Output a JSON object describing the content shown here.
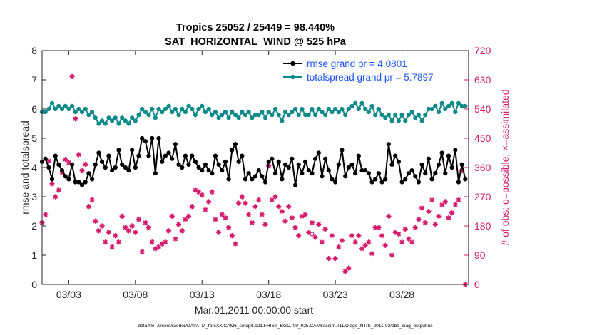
{
  "chart_data": {
    "type": "line",
    "title_line1": "Tropics 25052 / 25449 = 98.440%",
    "title_line2": "SAT_HORIZONTAL_WIND @ 525 hPa",
    "xlabel": "Mar.01,2011 00:00:00 start",
    "ylabel_left": "rmse and totalspread",
    "ylabel_right": "# of obs: o=possible; ×=assimilated",
    "footer": "data file: /Users/raeder/DAI/ATM_forcXX/CAM6_setup/f.e21.FHIST_BGC.f09_025.CAM6assim.011/Diags_NTrS_2011-03/obs_diag_output.nc",
    "xlim": [
      1,
      33
    ],
    "ylim_left": [
      0,
      8
    ],
    "ylim_right": [
      0,
      720
    ],
    "x_ticks": [
      3,
      8,
      13,
      18,
      23,
      28
    ],
    "x_tick_labels": [
      "03/03",
      "03/08",
      "03/13",
      "03/18",
      "03/23",
      "03/28"
    ],
    "y_ticks_left": [
      0,
      1,
      2,
      3,
      4,
      5,
      6,
      7,
      8
    ],
    "y_ticks_right": [
      0,
      90,
      180,
      270,
      360,
      450,
      540,
      630,
      720
    ],
    "colors": {
      "rmse": "#000000",
      "spread": "#0f8a8a",
      "obs": "#d6196b",
      "right_axis": "#d6196b",
      "legend_text": "#1a53ff"
    },
    "series": [
      {
        "name": "rmse grand pr = 4.0801",
        "x": [
          1.0,
          1.25,
          1.5,
          1.75,
          2.0,
          2.25,
          2.5,
          2.75,
          3.0,
          3.25,
          3.5,
          3.75,
          4.0,
          4.25,
          4.5,
          4.75,
          5.0,
          5.25,
          5.5,
          5.75,
          6.0,
          6.25,
          6.5,
          6.75,
          7.0,
          7.25,
          7.5,
          7.75,
          8.0,
          8.25,
          8.5,
          8.75,
          9.0,
          9.25,
          9.5,
          9.75,
          10.0,
          10.25,
          10.5,
          10.75,
          11.0,
          11.25,
          11.5,
          11.75,
          12.0,
          12.25,
          12.5,
          12.75,
          13.0,
          13.25,
          13.5,
          13.75,
          14.0,
          14.25,
          14.5,
          14.75,
          15.0,
          15.25,
          15.5,
          15.75,
          16.0,
          16.25,
          16.5,
          16.75,
          17.0,
          17.25,
          17.5,
          17.75,
          18.0,
          18.25,
          18.5,
          18.75,
          19.0,
          19.25,
          19.5,
          19.75,
          20.0,
          20.25,
          20.5,
          20.75,
          21.0,
          21.25,
          21.5,
          21.75,
          22.0,
          22.25,
          22.5,
          22.75,
          23.0,
          23.25,
          23.5,
          23.75,
          24.0,
          24.25,
          24.5,
          24.75,
          25.0,
          25.25,
          25.5,
          25.75,
          26.0,
          26.25,
          26.5,
          26.75,
          27.0,
          27.25,
          27.5,
          27.75,
          28.0,
          28.25,
          28.5,
          28.75,
          29.0,
          29.25,
          29.5,
          29.75,
          30.0,
          30.25,
          30.5,
          30.75,
          31.0,
          31.25,
          31.5,
          31.75,
          32.0,
          32.25,
          32.5,
          32.75
        ],
        "values": [
          4.2,
          4.3,
          4.0,
          3.6,
          4.4,
          4.1,
          3.9,
          3.7,
          3.6,
          4.1,
          3.5,
          3.5,
          3.4,
          3.5,
          3.8,
          3.6,
          4.1,
          4.5,
          4.2,
          4.0,
          4.4,
          3.9,
          4.0,
          4.6,
          4.1,
          4.0,
          3.9,
          4.6,
          4.0,
          4.4,
          5.0,
          4.9,
          4.4,
          5.0,
          3.8,
          5.0,
          4.2,
          4.4,
          4.5,
          4.3,
          4.8,
          4.1,
          4.0,
          4.4,
          4.1,
          4.4,
          4.2,
          4.0,
          3.9,
          4.1,
          3.9,
          3.8,
          4.4,
          4.1,
          3.9,
          4.2,
          3.6,
          4.6,
          4.8,
          4.2,
          4.4,
          3.6,
          3.8,
          3.6,
          3.7,
          3.9,
          3.7,
          3.5,
          4.2,
          4.3,
          3.8,
          4.2,
          3.6,
          4.1,
          4.0,
          4.3,
          3.4,
          4.1,
          3.8,
          4.2,
          3.9,
          3.8,
          4.3,
          4.5,
          3.7,
          4.3,
          3.9,
          3.6,
          3.5,
          4.1,
          4.6,
          3.7,
          4.0,
          4.1,
          3.8,
          4.4,
          3.9,
          3.9,
          3.8,
          3.5,
          3.6,
          3.8,
          3.5,
          3.6,
          4.8,
          4.1,
          4.4,
          4.2,
          3.5,
          3.6,
          3.8,
          3.9,
          3.7,
          3.5,
          4.1,
          3.8,
          4.3,
          3.6,
          3.8,
          4.1,
          4.5,
          3.8,
          4.4,
          4.0,
          4.6,
          3.5,
          4.1,
          3.6
        ]
      },
      {
        "name": "totalspread grand pr = 5.7897",
        "x": [
          1.0,
          1.25,
          1.5,
          1.75,
          2.0,
          2.25,
          2.5,
          2.75,
          3.0,
          3.25,
          3.5,
          3.75,
          4.0,
          4.25,
          4.5,
          4.75,
          5.0,
          5.25,
          5.5,
          5.75,
          6.0,
          6.25,
          6.5,
          6.75,
          7.0,
          7.25,
          7.5,
          7.75,
          8.0,
          8.25,
          8.5,
          8.75,
          9.0,
          9.25,
          9.5,
          9.75,
          10.0,
          10.25,
          10.5,
          10.75,
          11.0,
          11.25,
          11.5,
          11.75,
          12.0,
          12.25,
          12.5,
          12.75,
          13.0,
          13.25,
          13.5,
          13.75,
          14.0,
          14.25,
          14.5,
          14.75,
          15.0,
          15.25,
          15.5,
          15.75,
          16.0,
          16.25,
          16.5,
          16.75,
          17.0,
          17.25,
          17.5,
          17.75,
          18.0,
          18.25,
          18.5,
          18.75,
          19.0,
          19.25,
          19.5,
          19.75,
          20.0,
          20.25,
          20.5,
          20.75,
          21.0,
          21.25,
          21.5,
          21.75,
          22.0,
          22.25,
          22.5,
          22.75,
          23.0,
          23.25,
          23.5,
          23.75,
          24.0,
          24.25,
          24.5,
          24.75,
          25.0,
          25.25,
          25.5,
          25.75,
          26.0,
          26.25,
          26.5,
          26.75,
          27.0,
          27.25,
          27.5,
          27.75,
          28.0,
          28.25,
          28.5,
          28.75,
          29.0,
          29.25,
          29.5,
          29.75,
          30.0,
          30.25,
          30.5,
          30.75,
          31.0,
          31.25,
          31.5,
          31.75,
          32.0,
          32.25,
          32.5,
          32.75
        ],
        "values": [
          5.9,
          5.9,
          6.0,
          6.2,
          6.0,
          6.1,
          6.0,
          6.1,
          6.0,
          6.1,
          5.9,
          6.0,
          5.9,
          6.0,
          5.8,
          5.9,
          5.7,
          5.5,
          5.6,
          5.5,
          5.7,
          5.6,
          5.7,
          5.5,
          5.7,
          5.6,
          5.5,
          5.7,
          5.6,
          5.8,
          6.0,
          5.9,
          5.8,
          6.0,
          5.7,
          6.0,
          5.9,
          6.0,
          6.1,
          5.9,
          6.0,
          5.8,
          6.0,
          5.9,
          6.1,
          6.0,
          5.8,
          6.0,
          6.1,
          5.9,
          6.0,
          5.8,
          5.9,
          5.7,
          5.8,
          5.9,
          5.7,
          5.9,
          5.8,
          5.7,
          5.9,
          5.8,
          5.9,
          5.7,
          5.8,
          5.8,
          5.9,
          5.7,
          5.9,
          5.8,
          6.0,
          5.8,
          5.6,
          5.9,
          5.8,
          5.9,
          6.0,
          5.8,
          6.0,
          5.8,
          5.8,
          6.0,
          5.8,
          6.0,
          5.9,
          5.8,
          6.0,
          5.9,
          6.0,
          5.9,
          6.0,
          5.8,
          6.0,
          6.1,
          6.2,
          6.0,
          6.2,
          6.0,
          5.9,
          6.1,
          5.8,
          6.0,
          5.8,
          5.7,
          5.8,
          5.6,
          5.8,
          5.6,
          5.8,
          5.6,
          5.8,
          5.9,
          5.7,
          5.8,
          5.6,
          5.8,
          6.0,
          6.0,
          6.1,
          5.9,
          6.2,
          6.0,
          6.1,
          6.2,
          5.9,
          6.2,
          6.1,
          6.1
        ]
      },
      {
        "name": "obs_assimilated",
        "x": [
          1.0,
          1.25,
          1.5,
          1.75,
          2.0,
          2.25,
          2.5,
          2.75,
          3.0,
          3.25,
          3.5,
          3.75,
          4.0,
          4.25,
          4.5,
          4.75,
          5.0,
          5.25,
          5.5,
          5.75,
          6.0,
          6.25,
          6.5,
          6.75,
          7.0,
          7.25,
          7.5,
          7.75,
          8.0,
          8.25,
          8.5,
          8.75,
          9.0,
          9.25,
          9.5,
          9.75,
          10.0,
          10.25,
          10.5,
          10.75,
          11.0,
          11.25,
          11.5,
          11.75,
          12.0,
          12.25,
          12.5,
          12.75,
          13.0,
          13.25,
          13.5,
          13.75,
          14.0,
          14.25,
          14.5,
          14.75,
          15.0,
          15.25,
          15.5,
          15.75,
          16.0,
          16.25,
          16.5,
          16.75,
          17.0,
          17.25,
          17.5,
          17.75,
          18.0,
          18.25,
          18.5,
          18.75,
          19.0,
          19.25,
          19.5,
          19.75,
          20.0,
          20.25,
          20.5,
          20.75,
          21.0,
          21.25,
          21.5,
          21.75,
          22.0,
          22.25,
          22.5,
          22.75,
          23.0,
          23.25,
          23.5,
          23.75,
          24.0,
          24.25,
          24.5,
          24.75,
          25.0,
          25.25,
          25.5,
          25.75,
          26.0,
          26.25,
          26.5,
          26.75,
          27.0,
          27.25,
          27.5,
          27.75,
          28.0,
          28.25,
          28.5,
          28.75,
          29.0,
          29.25,
          29.5,
          29.75,
          30.0,
          30.25,
          30.5,
          30.75,
          31.0,
          31.25,
          31.5,
          31.75,
          32.0,
          32.25,
          32.5,
          32.75
        ],
        "values": [
          190,
          215,
          380,
          310,
          270,
          290,
          345,
          385,
          375,
          640,
          510,
          400,
          350,
          370,
          240,
          260,
          195,
          165,
          180,
          130,
          160,
          115,
          150,
          130,
          210,
          175,
          165,
          180,
          160,
          200,
          100,
          190,
          175,
          130,
          110,
          115,
          125,
          130,
          165,
          210,
          140,
          185,
          165,
          200,
          210,
          240,
          290,
          285,
          275,
          230,
          255,
          285,
          200,
          160,
          215,
          205,
          175,
          150,
          125,
          250,
          270,
          250,
          215,
          190,
          240,
          260,
          215,
          185,
          365,
          260,
          270,
          240,
          225,
          195,
          240,
          205,
          175,
          150,
          210,
          215,
          160,
          190,
          145,
          185,
          130,
          170,
          80,
          150,
          80,
          115,
          135,
          40,
          50,
          150,
          130,
          150,
          110,
          120,
          130,
          95,
          175,
          175,
          150,
          120,
          210,
          90,
          160,
          155,
          130,
          170,
          140,
          130,
          175,
          200,
          235,
          190,
          225,
          260,
          185,
          210,
          245,
          255,
          205,
          220,
          245,
          260,
          350,
          0
        ]
      },
      {
        "name": "obs_possible",
        "x": [
          21.25
        ],
        "values": [
          155
        ]
      }
    ],
    "legend": [
      "rmse grand pr = 4.0801",
      "totalspread grand pr = 5.7897"
    ],
    "legend_position": "top-right"
  }
}
